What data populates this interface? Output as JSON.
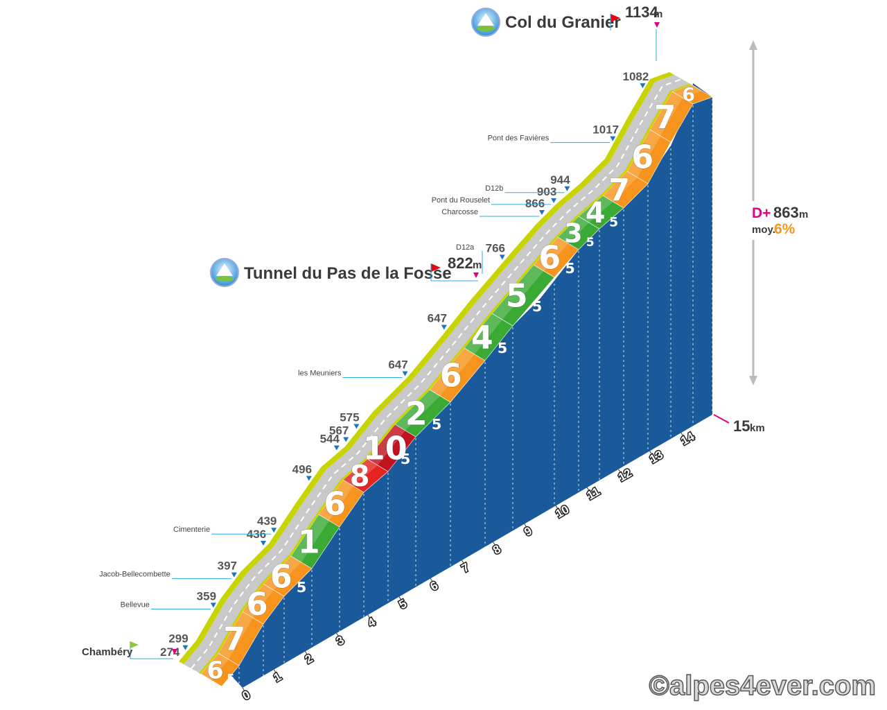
{
  "chart_data": {
    "type": "area",
    "title": "Col du Granier",
    "summit": {
      "name": "Col du Granier",
      "altitude": "1134",
      "unit": "m"
    },
    "pass": {
      "name": "Tunnel du Pas de la Fosse",
      "altitude": "822",
      "unit": "m",
      "road": "D12a"
    },
    "start": {
      "name": "Chambéry",
      "altitude": "274"
    },
    "distance": {
      "value": "15",
      "unit": "km"
    },
    "stats": {
      "dplus_label": "D+",
      "dplus_value": "863",
      "dplus_unit": "m",
      "avg_label": "moy.",
      "avg_value": "6%"
    },
    "km_ticks": [
      "0",
      "1",
      "2",
      "3",
      "4",
      "5",
      "6",
      "7",
      "8",
      "9",
      "10",
      "11",
      "12",
      "13",
      "14"
    ],
    "segments": [
      {
        "grade": 6.5,
        "label_main": "6",
        "label_sub": "5",
        "color": "#f7941d"
      },
      {
        "grade": 7,
        "label_main": "7",
        "label_sub": "",
        "color": "#f7941d"
      },
      {
        "grade": 6,
        "label_main": "6",
        "label_sub": "",
        "color": "#f7941d"
      },
      {
        "grade": 6.5,
        "label_main": "6",
        "label_sub": "5",
        "color": "#f7941d"
      },
      {
        "grade": 1,
        "label_main": "1",
        "label_sub": "",
        "color": "#3aaa35"
      },
      {
        "grade": 6,
        "label_main": "6",
        "label_sub": "",
        "color": "#f7941d"
      },
      {
        "grade": 8,
        "label_main": "8",
        "label_sub": "",
        "color": "#e52421"
      },
      {
        "grade": 10.5,
        "label_main": "10",
        "label_sub": "5",
        "color": "#c1121f"
      },
      {
        "grade": 2.5,
        "label_main": "2",
        "label_sub": "5",
        "color": "#3aaa35"
      },
      {
        "grade": 6,
        "label_main": "6",
        "label_sub": "",
        "color": "#f7941d"
      },
      {
        "grade": 4.5,
        "label_main": "4",
        "label_sub": "5",
        "color": "#3aaa35"
      },
      {
        "grade": 5.5,
        "label_main": "5",
        "label_sub": "5",
        "color": "#3aaa35"
      },
      {
        "grade": 6.5,
        "label_main": "6",
        "label_sub": "5",
        "color": "#f7941d"
      },
      {
        "grade": 3.5,
        "label_main": "3",
        "label_sub": "5",
        "color": "#3aaa35"
      },
      {
        "grade": 4.5,
        "label_main": "4",
        "label_sub": "5",
        "color": "#3aaa35"
      },
      {
        "grade": 7,
        "label_main": "7",
        "label_sub": "",
        "color": "#f7941d"
      },
      {
        "grade": 6,
        "label_main": "6",
        "label_sub": "",
        "color": "#f7941d"
      },
      {
        "grade": 7,
        "label_main": "7",
        "label_sub": "",
        "color": "#f7941d"
      },
      {
        "grade": 6,
        "label_main": "6",
        "label_sub": "",
        "color": "#f7941d"
      }
    ],
    "waypoints": [
      {
        "alt": "274",
        "place": "Chambéry"
      },
      {
        "alt": "299",
        "place": ""
      },
      {
        "alt": "359",
        "place": "Bellevue"
      },
      {
        "alt": "397",
        "place": "Jacob-Bellecombette"
      },
      {
        "alt": "436",
        "place": ""
      },
      {
        "alt": "439",
        "place": "Cimenterie"
      },
      {
        "alt": "496",
        "place": ""
      },
      {
        "alt": "544",
        "place": ""
      },
      {
        "alt": "567",
        "place": ""
      },
      {
        "alt": "575",
        "place": ""
      },
      {
        "alt": "647",
        "place": "les Meuniers"
      },
      {
        "alt": "647",
        "place": ""
      },
      {
        "alt": "766",
        "place": ""
      },
      {
        "alt": "866",
        "place": "Charcosse"
      },
      {
        "alt": "903",
        "place": "Pont du Rouselet"
      },
      {
        "alt": "944",
        "place": "D12b"
      },
      {
        "alt": "1017",
        "place": "Pont des Favières"
      },
      {
        "alt": "1082",
        "place": ""
      }
    ],
    "colors": {
      "side": "#1a5a9a",
      "road": "#c9c9c9",
      "verge": "#c8d400",
      "orange": "#f7941d",
      "green": "#3aaa35",
      "red": "#e52421",
      "marker": "#1b75bc",
      "flag_red": "#e30613",
      "flag_green": "#8cc63f",
      "pink": "#e6007e"
    }
  },
  "copyright": "©alpes4ever.com"
}
